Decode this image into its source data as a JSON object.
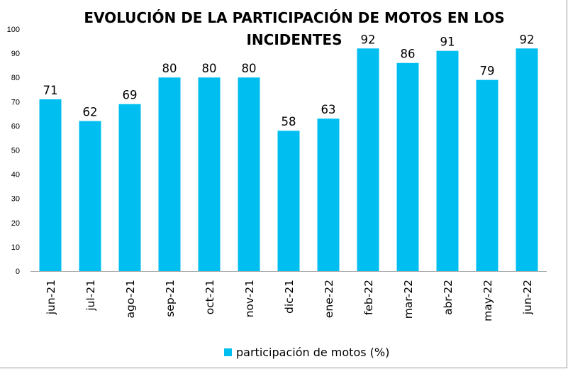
{
  "chart_data": {
    "type": "bar",
    "title": "EVOLUCIÓN DE LA PARTICIPACIÓN DE MOTOS EN LOS INCIDENTES",
    "xlabel": "",
    "ylabel": "",
    "categories": [
      "jun-21",
      "jul-21",
      "ago-21",
      "sep-21",
      "oct-21",
      "nov-21",
      "dic-21",
      "ene-22",
      "feb-22",
      "mar-22",
      "abr-22",
      "may-22",
      "jun-22"
    ],
    "series": [
      {
        "name": "participación de motos (%)",
        "values": [
          71,
          62,
          69,
          80,
          80,
          80,
          58,
          63,
          92,
          86,
          91,
          79,
          92
        ],
        "color": "#00BFF0"
      }
    ],
    "ylim": [
      0,
      100
    ],
    "yticks": [
      "0",
      "10",
      "20",
      "30",
      "40",
      "50",
      "60",
      "70",
      "80",
      "90",
      "100"
    ],
    "grid": false,
    "legend_position": "bottom"
  }
}
